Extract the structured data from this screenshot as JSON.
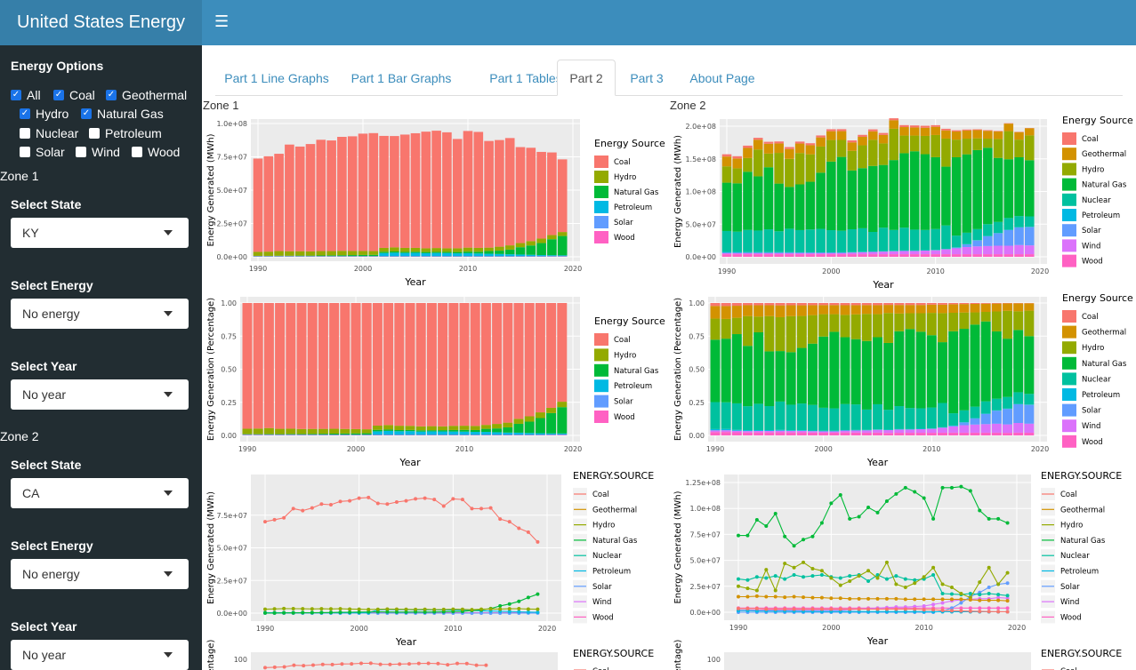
{
  "app_title": "United States Energy",
  "colors": {
    "Coal": "#F8766D",
    "Geothermal": "#D39200",
    "Hydro": "#93AA00",
    "Natural Gas": "#00BA38",
    "Nuclear": "#00C19F",
    "Petroleum": "#00B9E3",
    "Solar": "#619CFF",
    "Wind": "#DB72FB",
    "Wood": "#FF61C3"
  },
  "sidebar": {
    "options_title": "Energy Options",
    "checkboxes": [
      {
        "label": "All",
        "checked": true
      },
      {
        "label": "Coal",
        "checked": true
      },
      {
        "label": "Geothermal",
        "checked": true
      },
      {
        "label": "Hydro",
        "checked": true
      },
      {
        "label": "Natural Gas",
        "checked": true
      },
      {
        "label": "Nuclear",
        "checked": false
      },
      {
        "label": "Petroleum",
        "checked": false
      },
      {
        "label": "Solar",
        "checked": false
      },
      {
        "label": "Wind",
        "checked": false
      },
      {
        "label": "Wood",
        "checked": false
      }
    ],
    "zone1": {
      "label": "Zone 1",
      "state_label": "Select State",
      "state": "KY",
      "energy_label": "Select Energy",
      "energy": "No energy",
      "year_label": "Select Year",
      "year": "No year"
    },
    "zone2": {
      "label": "Zone 2",
      "state_label": "Select State",
      "state": "CA",
      "energy_label": "Select Energy",
      "energy": "No energy",
      "year_label": "Select Year",
      "year": "No year"
    }
  },
  "tabs": [
    "Part 1 Line Graphs",
    "Part 1 Bar Graphs",
    "Part 1 Tables",
    "Part 2",
    "Part 3",
    "About Page"
  ],
  "active_tab": "Part 2",
  "zone_titles": [
    "Zone 1",
    "Zone 2"
  ],
  "chart_data": [
    {
      "id": "z1-bar",
      "type": "bar",
      "stacked": true,
      "xlabel": "Year",
      "ylabel": "Energy Generated (MWh)",
      "legend_title": "Energy Source",
      "categories": [
        1990,
        1991,
        1992,
        1993,
        1994,
        1995,
        1996,
        1997,
        1998,
        1999,
        2000,
        2001,
        2002,
        2003,
        2004,
        2005,
        2006,
        2007,
        2008,
        2009,
        2010,
        2011,
        2012,
        2013,
        2014,
        2015,
        2016,
        2017,
        2018,
        2019
      ],
      "ylim": [
        0,
        100000000
      ],
      "yticks": [
        "0.0e+00",
        "2.5e+07",
        "5.0e+07",
        "7.5e+07",
        "1.0e+08"
      ],
      "xticks": [
        1990,
        2000,
        2010,
        2020
      ],
      "series": [
        {
          "name": "Wood",
          "values": [
            300000,
            300000,
            300000,
            300000,
            300000,
            300000,
            300000,
            300000,
            300000,
            300000,
            300000,
            300000,
            300000,
            300000,
            300000,
            300000,
            300000,
            300000,
            300000,
            300000,
            300000,
            300000,
            300000,
            300000,
            300000,
            300000,
            300000,
            300000,
            300000,
            300000
          ]
        },
        {
          "name": "Solar",
          "values": [
            0,
            0,
            0,
            0,
            0,
            0,
            0,
            0,
            0,
            0,
            0,
            0,
            0,
            0,
            0,
            0,
            0,
            0,
            0,
            0,
            0,
            0,
            0,
            0,
            0,
            0,
            0,
            0,
            100000,
            100000
          ]
        },
        {
          "name": "Petroleum",
          "values": [
            300000,
            300000,
            300000,
            300000,
            300000,
            300000,
            300000,
            300000,
            300000,
            300000,
            300000,
            300000,
            2500000,
            2800000,
            2600000,
            2700000,
            2400000,
            2600000,
            2500000,
            2300000,
            2400000,
            2200000,
            2000000,
            1800000,
            1600000,
            1400000,
            1200000,
            1000000,
            800000,
            700000
          ]
        },
        {
          "name": "Natural Gas",
          "values": [
            100000,
            100000,
            200000,
            200000,
            300000,
            300000,
            400000,
            500000,
            600000,
            700000,
            800000,
            900000,
            1000000,
            900000,
            800000,
            800000,
            900000,
            800000,
            900000,
            1000000,
            1200000,
            1300000,
            2000000,
            2500000,
            3500000,
            5500000,
            7000000,
            9000000,
            12000000,
            14500000
          ]
        },
        {
          "name": "Hydro",
          "values": [
            3000000,
            3200000,
            3500000,
            3400000,
            3300000,
            3200000,
            3300000,
            3200000,
            3300000,
            3100000,
            3000000,
            2800000,
            2900000,
            3100000,
            3000000,
            2900000,
            2800000,
            2900000,
            2700000,
            2800000,
            3000000,
            2900000,
            2600000,
            3000000,
            3200000,
            3100000,
            3300000,
            3400000,
            3100000,
            3000000
          ]
        },
        {
          "name": "Coal",
          "values": [
            70000000,
            71500000,
            73000000,
            80000000,
            78500000,
            80500000,
            83500000,
            83000000,
            85500000,
            86000000,
            88000000,
            88500000,
            84000000,
            83500000,
            85000000,
            86000000,
            87500000,
            88000000,
            87000000,
            82000000,
            87500000,
            87000000,
            80000000,
            80000000,
            80500000,
            72000000,
            70000000,
            65000000,
            62000000,
            54500000
          ]
        }
      ]
    },
    {
      "id": "z2-bar",
      "type": "bar",
      "stacked": true,
      "xlabel": "Year",
      "ylabel": "Energy Generated (MWh)",
      "legend_title": "Energy Source",
      "categories": [
        1990,
        1991,
        1992,
        1993,
        1994,
        1995,
        1996,
        1997,
        1998,
        1999,
        2000,
        2001,
        2002,
        2003,
        2004,
        2005,
        2006,
        2007,
        2008,
        2009,
        2010,
        2011,
        2012,
        2013,
        2014,
        2015,
        2016,
        2017,
        2018,
        2019
      ],
      "ylim": [
        0,
        200000000
      ],
      "yticks": [
        "0.0e+00",
        "5.0e+07",
        "1.0e+08",
        "1.5e+08",
        "2.0e+08"
      ],
      "xticks": [
        1990,
        2000,
        2010,
        2020
      ],
      "series": [
        {
          "name": "Wood",
          "values": [
            4000000,
            4000000,
            4000000,
            4000000,
            4000000,
            4000000,
            4000000,
            4000000,
            4000000,
            4000000,
            4000000,
            4000000,
            4000000,
            4000000,
            4000000,
            4000000,
            4000000,
            4000000,
            4000000,
            4000000,
            4000000,
            4000000,
            4000000,
            4000000,
            4000000,
            4000000,
            4000000,
            4000000,
            4000000,
            4000000
          ]
        },
        {
          "name": "Wind",
          "values": [
            2000000,
            2000000,
            2000000,
            2000000,
            2000000,
            2000000,
            2000000,
            2000000,
            2000000,
            2000000,
            2000000,
            2000000,
            2500000,
            3000000,
            3500000,
            4000000,
            4500000,
            5000000,
            5000000,
            5500000,
            6000000,
            7500000,
            9000000,
            11000000,
            12000000,
            12500000,
            13000000,
            13000000,
            14000000,
            13500000
          ]
        },
        {
          "name": "Solar",
          "values": [
            0,
            0,
            0,
            0,
            0,
            0,
            0,
            0,
            0,
            0,
            0,
            0,
            0,
            0,
            0,
            0,
            0,
            0,
            0,
            0,
            0,
            0,
            1000000,
            4000000,
            9000000,
            15000000,
            19000000,
            24000000,
            27000000,
            28000000
          ]
        },
        {
          "name": "Petroleum",
          "values": [
            1500000,
            1500000,
            1200000,
            1200000,
            1100000,
            1100000,
            1000000,
            900000,
            900000,
            800000,
            800000,
            900000,
            700000,
            700000,
            600000,
            600000,
            600000,
            600000,
            600000,
            600000,
            500000,
            500000,
            400000,
            400000,
            400000,
            400000,
            400000,
            400000,
            400000,
            400000
          ]
        },
        {
          "name": "Nuclear",
          "values": [
            32000000,
            31000000,
            34000000,
            33000000,
            35000000,
            32000000,
            36000000,
            34000000,
            35000000,
            36000000,
            34000000,
            33000000,
            35000000,
            36000000,
            30000000,
            36000000,
            32000000,
            35000000,
            32000000,
            31000000,
            32000000,
            36000000,
            18000000,
            17500000,
            17000000,
            18000000,
            17000000,
            18000000,
            17000000,
            16000000
          ]
        },
        {
          "name": "Natural Gas",
          "values": [
            74000000,
            74000000,
            89000000,
            83000000,
            95000000,
            73000000,
            64000000,
            70000000,
            73000000,
            86000000,
            105000000,
            113000000,
            90000000,
            92000000,
            101000000,
            96000000,
            107000000,
            114000000,
            120000000,
            116000000,
            110000000,
            90000000,
            120000000,
            120000000,
            121000000,
            117000000,
            98000000,
            90000000,
            90000000,
            86000000
          ]
        },
        {
          "name": "Hydro",
          "values": [
            25000000,
            23000000,
            21000000,
            41000000,
            21000000,
            47000000,
            43000000,
            48000000,
            42000000,
            40000000,
            33000000,
            26000000,
            30000000,
            35000000,
            40000000,
            33000000,
            48000000,
            27000000,
            24000000,
            28000000,
            34000000,
            43000000,
            27000000,
            24000000,
            18000000,
            14000000,
            29000000,
            43000000,
            27000000,
            38000000
          ]
        },
        {
          "name": "Geothermal",
          "values": [
            15000000,
            15000000,
            15500000,
            15000000,
            15000000,
            14500000,
            15000000,
            14500000,
            14000000,
            14000000,
            13500000,
            13500000,
            13000000,
            13000000,
            13000000,
            13000000,
            13000000,
            13000000,
            12500000,
            12500000,
            12500000,
            12500000,
            12500000,
            12500000,
            12500000,
            12000000,
            11500000,
            11500000,
            11500000,
            11000000
          ]
        },
        {
          "name": "Coal",
          "values": [
            3500000,
            3500000,
            3500000,
            3000000,
            3000000,
            3000000,
            3000000,
            3000000,
            3000000,
            3000000,
            3000000,
            3000000,
            3000000,
            3000000,
            3000000,
            3000000,
            3000000,
            3000000,
            3000000,
            3000000,
            2500000,
            2500000,
            1800000,
            1500000,
            1300000,
            1000000,
            800000,
            600000,
            500000,
            400000
          ]
        }
      ]
    },
    {
      "id": "z1-pct",
      "type": "bar",
      "stacked": true,
      "normalized": true,
      "xlabel": "Year",
      "ylabel": "Energy Generation (Percentage)",
      "legend_title": "Energy Source",
      "ylim": [
        0,
        1
      ],
      "yticks": [
        "0.00",
        "0.25",
        "0.50",
        "0.75",
        "1.00"
      ],
      "xticks": [
        1990,
        2000,
        2010,
        2020
      ],
      "source": "z1-bar"
    },
    {
      "id": "z2-pct",
      "type": "bar",
      "stacked": true,
      "normalized": true,
      "xlabel": "Year",
      "ylabel": "Energy Generation (Percentage)",
      "legend_title": "Energy Source",
      "ylim": [
        0,
        1
      ],
      "yticks": [
        "0.00",
        "0.25",
        "0.50",
        "0.75",
        "1.00"
      ],
      "xticks": [
        1990,
        2000,
        2010,
        2020
      ],
      "source": "z2-bar"
    },
    {
      "id": "z1-line",
      "type": "line",
      "xlabel": "Year",
      "ylabel": "Energy Generated (MWh)",
      "legend_title": "ENERGY.SOURCE",
      "ylim": [
        0,
        100000000
      ],
      "yticks": [
        "0.0e+00",
        "2.5e+07",
        "5.0e+07",
        "7.5e+07"
      ],
      "xticks": [
        1990,
        2000,
        2010,
        2020
      ],
      "legend": [
        "Coal",
        "Geothermal",
        "Hydro",
        "Natural Gas",
        "Nuclear",
        "Petroleum",
        "Solar",
        "Wind",
        "Wood"
      ],
      "source": "z1-bar"
    },
    {
      "id": "z2-line",
      "type": "line",
      "xlabel": "Year",
      "ylabel": "Energy Generated (MWh)",
      "legend_title": "ENERGY.SOURCE",
      "ylim": [
        0,
        125000000
      ],
      "yticks": [
        "0.0e+00",
        "2.5e+07",
        "5.0e+07",
        "7.5e+07",
        "1.0e+08",
        "1.25e+08"
      ],
      "xticks": [
        1990,
        2000,
        2010,
        2020
      ],
      "legend": [
        "Coal",
        "Geothermal",
        "Hydro",
        "Natural Gas",
        "Nuclear",
        "Petroleum",
        "Solar",
        "Wind",
        "Wood"
      ],
      "source": "z2-bar"
    },
    {
      "id": "z1-bottom",
      "type": "line",
      "ylabel": "(percentage)",
      "legend_title": "ENERGY.SOURCE",
      "yticks": [
        "100"
      ],
      "legend": [
        "Coal"
      ]
    },
    {
      "id": "z2-bottom",
      "type": "line",
      "ylabel": "(percentage)",
      "legend_title": "ENERGY.SOURCE",
      "yticks": [
        "100"
      ],
      "legend": [
        "Coal"
      ]
    }
  ]
}
